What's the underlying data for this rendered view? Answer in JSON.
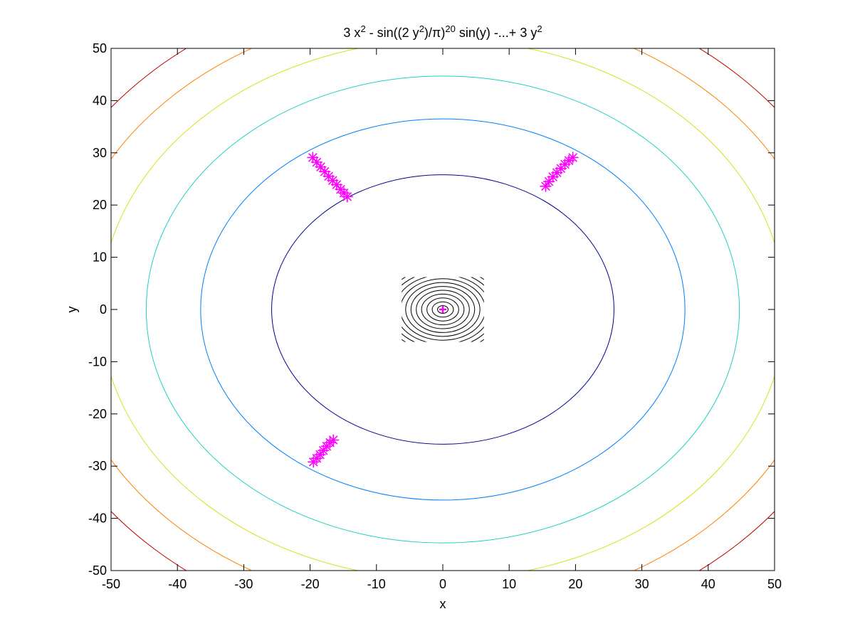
{
  "chart_data": {
    "type": "contour",
    "title": {
      "segments": [
        {
          "text": "3 x",
          "sup": false
        },
        {
          "text": "2",
          "sup": true
        },
        {
          "text": " - sin((2 y",
          "sup": false
        },
        {
          "text": "2",
          "sup": true
        },
        {
          "text": ")/π)",
          "sup": false
        },
        {
          "text": "20",
          "sup": true
        },
        {
          "text": " sin(y) -...+ 3 y",
          "sup": false
        },
        {
          "text": "2",
          "sup": true
        }
      ]
    },
    "xlabel": "x",
    "ylabel": "y",
    "xlim": [
      -50,
      50
    ],
    "ylim": [
      -50,
      50
    ],
    "xticks": [
      -50,
      -40,
      -30,
      -20,
      -10,
      0,
      10,
      20,
      30,
      40,
      50
    ],
    "yticks": [
      -50,
      -40,
      -30,
      -20,
      -10,
      0,
      10,
      20,
      30,
      40,
      50
    ],
    "grid": false,
    "outer_contours": [
      {
        "level": 1,
        "color": "#00008f",
        "rx": 25.8,
        "ry": 25.8
      },
      {
        "level": 2,
        "color": "#0080ff",
        "rx": 36.5,
        "ry": 36.5
      },
      {
        "level": 3,
        "color": "#20d0c0",
        "rx": 44.7,
        "ry": 44.7
      },
      {
        "level": 4,
        "color": "#d8e020",
        "rx": 51.6,
        "ry": 51.6
      },
      {
        "level": 5,
        "color": "#ff8000",
        "rx": 57.7,
        "ry": 57.7
      },
      {
        "level": 6,
        "color": "#c00000",
        "rx": 63.2,
        "ry": 63.2
      }
    ],
    "inner_contours": {
      "color": "#000000",
      "clip_x": [
        -6.2,
        6.2
      ],
      "clip_y": [
        -6.2,
        6.2
      ],
      "radii": [
        0.8,
        1.6,
        2.4,
        3.2,
        4.0,
        4.8,
        5.6,
        6.4,
        7.2,
        8.0,
        8.8
      ]
    },
    "markers": {
      "color": "#ff00ff",
      "symbol": "asterisk",
      "series": [
        {
          "points": [
            [
              -19.6,
              29.1
            ],
            [
              -19.0,
              28.2
            ],
            [
              -18.4,
              27.3
            ],
            [
              -17.8,
              26.4
            ],
            [
              -17.2,
              25.5
            ],
            [
              -16.6,
              24.7
            ],
            [
              -16.0,
              23.9
            ],
            [
              -15.4,
              23.0
            ],
            [
              -14.9,
              22.3
            ],
            [
              -14.4,
              21.6
            ]
          ]
        },
        {
          "points": [
            [
              19.6,
              29.1
            ],
            [
              19.0,
              28.5
            ],
            [
              18.4,
              27.8
            ],
            [
              17.8,
              27.0
            ],
            [
              17.2,
              26.2
            ],
            [
              16.6,
              25.4
            ],
            [
              16.0,
              24.5
            ],
            [
              15.5,
              23.6
            ]
          ]
        },
        {
          "points": [
            [
              -19.5,
              -29.2
            ],
            [
              -19.0,
              -28.5
            ],
            [
              -18.5,
              -27.8
            ],
            [
              -18.0,
              -27.0
            ],
            [
              -17.5,
              -26.2
            ],
            [
              -17.0,
              -25.5
            ],
            [
              -16.5,
              -25.0
            ]
          ]
        }
      ],
      "center_point": {
        "symbol": "plus",
        "x": 0,
        "y": 0
      }
    }
  }
}
